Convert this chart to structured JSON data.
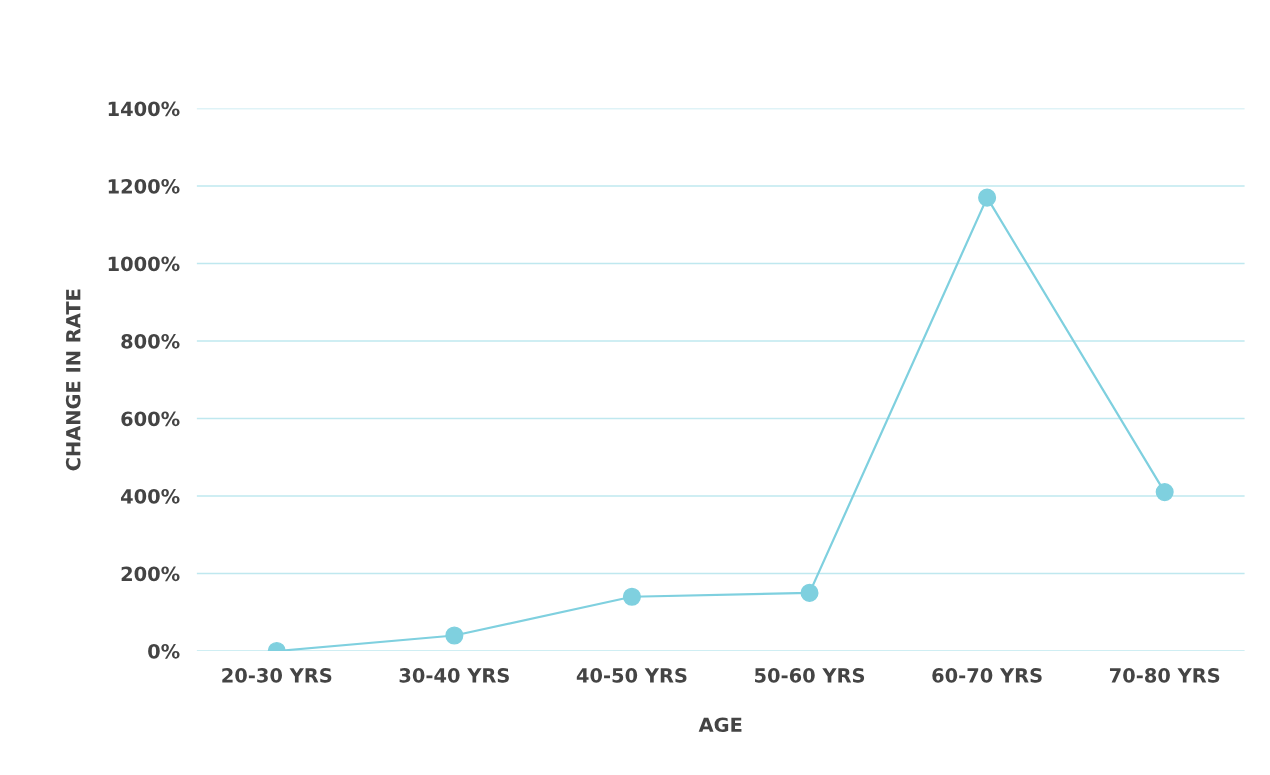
{
  "chart_data": {
    "type": "line",
    "xlabel": "AGE",
    "ylabel": "CHANGE IN RATE",
    "categories": [
      "20-30 YRS",
      "30-40 YRS",
      "40-50 YRS",
      "50-60 YRS",
      "60-70 YRS",
      "70-80 YRS"
    ],
    "series": [
      {
        "color": "#7fd0df",
        "values": [
          0,
          40,
          140,
          150,
          1170,
          410
        ]
      }
    ],
    "ylim": [
      0,
      1400
    ],
    "yticks": [
      {
        "value": 0,
        "label": "0%"
      },
      {
        "value": 200,
        "label": "200%"
      },
      {
        "value": 400,
        "label": "400%"
      },
      {
        "value": 600,
        "label": "600%"
      },
      {
        "value": 800,
        "label": "800%"
      },
      {
        "value": 1000,
        "label": "1000%"
      },
      {
        "value": 1200,
        "label": "1200%"
      },
      {
        "value": 1400,
        "label": "1400%"
      }
    ],
    "grid": "y",
    "marker": "circle",
    "line_style": "solid"
  }
}
